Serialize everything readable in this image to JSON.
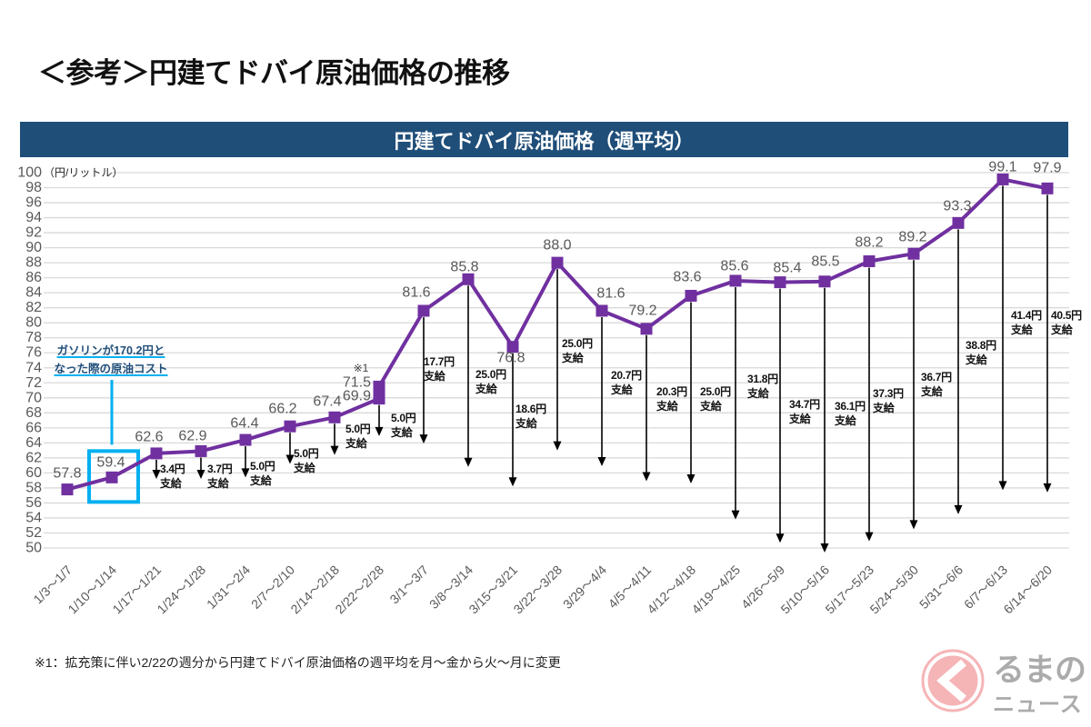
{
  "page_title": "＜参考＞円建てドバイ原油価格の推移",
  "chart_data": {
    "type": "line",
    "title": "円建てドバイ原油価格（週平均）",
    "xlabel": "",
    "ylabel": "（円/リットル）",
    "ylim": [
      50,
      100
    ],
    "yticks": [
      100,
      98,
      96,
      94,
      92,
      90,
      88,
      86,
      84,
      82,
      80,
      78,
      76,
      74,
      72,
      70,
      68,
      66,
      64,
      62,
      60,
      58,
      56,
      54,
      52,
      50
    ],
    "grid": true,
    "legend": "none",
    "categories": [
      "1/3〜1/7",
      "1/10〜1/14",
      "1/17〜1/21",
      "1/24〜1/28",
      "1/31〜2/4",
      "2/7〜2/10",
      "2/14〜2/18",
      "2/22〜2/28",
      "3/1〜3/7",
      "3/8〜3/14",
      "3/15〜3/21",
      "3/22〜3/28",
      "3/29〜4/4",
      "4/5〜4/11",
      "4/12〜4/18",
      "4/19〜4/25",
      "4/26〜5/9",
      "5/10〜5/16",
      "5/17〜5/23",
      "5/24〜5/30",
      "5/31〜6/6",
      "6/7〜6/13",
      "6/14〜6/20"
    ],
    "series": [
      {
        "name": "円建てドバイ原油価格（週平均）",
        "color": "#7030a0",
        "marker": "square",
        "values": [
          57.8,
          59.4,
          62.6,
          62.9,
          64.4,
          66.2,
          67.4,
          69.9,
          81.6,
          85.8,
          76.8,
          88.0,
          81.6,
          79.2,
          83.6,
          85.6,
          85.4,
          85.5,
          88.2,
          89.2,
          93.3,
          99.1,
          97.9
        ],
        "data_labels": [
          "57.8",
          "59.4",
          "62.6",
          "62.9",
          "64.4",
          "66.2",
          "67.4",
          "69.9",
          "81.6",
          "85.8",
          "76.8",
          "88.0",
          "81.6",
          "79.2",
          "83.6",
          "85.6",
          "85.4",
          "85.5",
          "88.2",
          "89.2",
          "93.3",
          "99.1",
          "97.9"
        ]
      }
    ],
    "revised_point": {
      "category": "2/22〜2/28",
      "value": 71.5,
      "data_label": "71.5",
      "note_mark": "※1"
    },
    "subsidies": {
      "unit": "円",
      "caption": "支給",
      "arrow_color": "#000000",
      "values": [
        null,
        null,
        3.4,
        3.7,
        5.0,
        5.0,
        5.0,
        5.0,
        17.7,
        25.0,
        18.6,
        25.0,
        20.7,
        20.3,
        25.0,
        31.8,
        34.7,
        36.1,
        37.3,
        36.7,
        38.8,
        41.4,
        40.5
      ],
      "labels": [
        null,
        null,
        "3.4円",
        "3.7円",
        "5.0円",
        "5.0円",
        "5.0円",
        "5.0円",
        "17.7円",
        "25.0円",
        "18.6円",
        "25.0円",
        "20.7円",
        "20.3円",
        "25.0円",
        "31.8円",
        "34.7円",
        "36.1円",
        "37.3円",
        "36.7円",
        "38.8円",
        "41.4円",
        "40.5円"
      ]
    },
    "highlight": {
      "category": "1/10〜1/14",
      "value": 59.4,
      "color": "#00b0f0",
      "annotation_lines": [
        "ガソリンが170.2円と",
        "なった際の原油コスト"
      ]
    }
  },
  "footnote": "※1：拡充策に伴い2/22の週分から円建てドバイ原油価格の週平均を月〜金から火〜月に変更",
  "logo": {
    "icon": "kurumano-chevron-icon",
    "line1": "るまの",
    "line2": "ニュース",
    "accent_color": "#f29b9e"
  }
}
